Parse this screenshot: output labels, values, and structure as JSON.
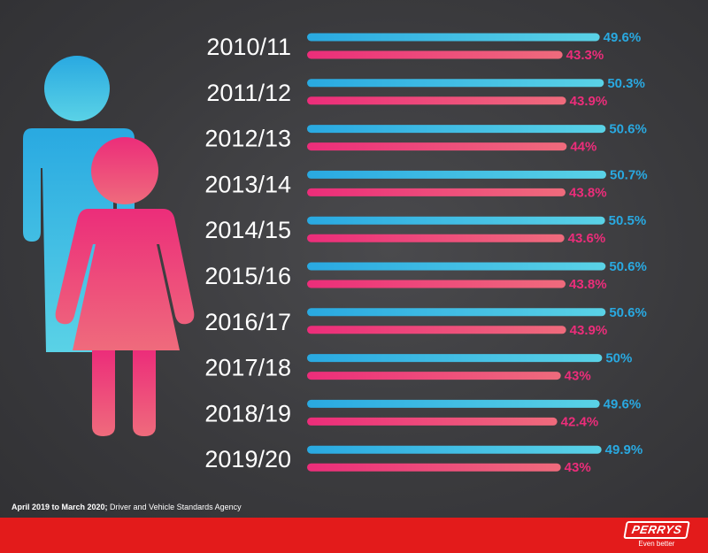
{
  "colors": {
    "male": "#29a9e1",
    "male_light": "#5ad2e6",
    "female": "#ec2d7a",
    "female_light": "#ef6b7c",
    "background": "#3a3a3d",
    "footer": "#e31b1b"
  },
  "icons": [
    "male-figure-icon",
    "female-figure-icon"
  ],
  "chart_data": {
    "type": "bar",
    "orientation": "horizontal",
    "title": "",
    "xlabel": "",
    "ylabel": "",
    "categories": [
      "2010/11",
      "2011/12",
      "2012/13",
      "2013/14",
      "2014/15",
      "2015/16",
      "2016/17",
      "2017/18",
      "2018/19",
      "2019/20"
    ],
    "series": [
      {
        "values": [
          49.6,
          50.3,
          50.6,
          50.7,
          50.5,
          50.6,
          50.6,
          50,
          49.6,
          49.9
        ],
        "labels": [
          "49.6%",
          "50.3%",
          "50.6%",
          "50.7%",
          "50.5%",
          "50.6%",
          "50.6%",
          "50%",
          "49.6%",
          "49.9%"
        ],
        "color": "#29a9e1"
      },
      {
        "values": [
          43.3,
          43.9,
          44,
          43.8,
          43.6,
          43.8,
          43.9,
          43,
          42.4,
          43
        ],
        "labels": [
          "43.3%",
          "43.9%",
          "44%",
          "43.8%",
          "43.6%",
          "43.8%",
          "43.9%",
          "43%",
          "42.4%",
          "43%"
        ],
        "color": "#ec2d7a"
      }
    ],
    "xlim": [
      0,
      51
    ],
    "grid": false,
    "legend": "none"
  },
  "footer": {
    "source_bold": "April 2019 to March 2020;",
    "source_rest": " Driver and Vehicle Standards Agency",
    "brand_name": "PERRYS",
    "brand_tagline": "Even better"
  }
}
